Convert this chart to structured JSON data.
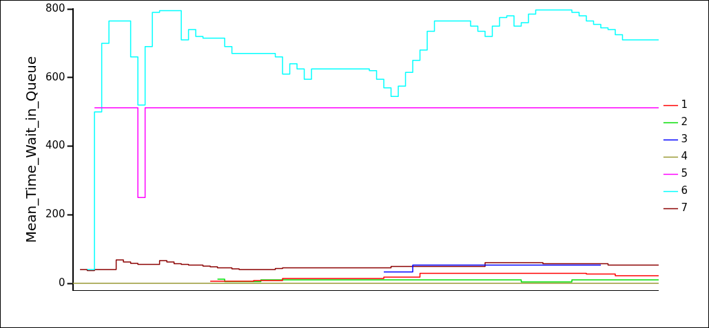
{
  "chart_data": {
    "type": "step",
    "ylabel": "Mean_Time_Wait_in_Queue",
    "categories": [
      null,
      null,
      null,
      null,
      null,
      null,
      null,
      null,
      null,
      null,
      null,
      null,
      null,
      null,
      null,
      null,
      null,
      null,
      null,
      null,
      null,
      null,
      null,
      null,
      null,
      null,
      null,
      null,
      null,
      null,
      null,
      null,
      null,
      null,
      null,
      null,
      null,
      null,
      null,
      null,
      null,
      null,
      null,
      null,
      null,
      null,
      null,
      null,
      null,
      null,
      null,
      null,
      null,
      null,
      null,
      null,
      null,
      null,
      null,
      null,
      null,
      null,
      null,
      null,
      null,
      null,
      null,
      null,
      null,
      null,
      null,
      null,
      null,
      null,
      null,
      null,
      null,
      null,
      null,
      null,
      null,
      null
    ],
    "ylim": [
      -20,
      800
    ],
    "yticks": [
      0,
      200,
      400,
      600,
      800
    ],
    "grid": false,
    "legend": "right",
    "series": [
      {
        "name": "1",
        "color": "#ff0000",
        "values": [
          null,
          null,
          null,
          null,
          null,
          null,
          null,
          null,
          null,
          null,
          null,
          null,
          null,
          null,
          null,
          null,
          null,
          null,
          null,
          6,
          6,
          6,
          6,
          6,
          6,
          8,
          8,
          8,
          8,
          14,
          14,
          14,
          14,
          14,
          14,
          14,
          14,
          14,
          14,
          14,
          14,
          14,
          14,
          18,
          18,
          18,
          18,
          18,
          29,
          29,
          29,
          29,
          29,
          29,
          29,
          29,
          29,
          29,
          29,
          29,
          29,
          29,
          29,
          29,
          29,
          29,
          29,
          29,
          29,
          29,
          29,
          27,
          27,
          27,
          27,
          22,
          22,
          22,
          22,
          22,
          22,
          22
        ]
      },
      {
        "name": "2",
        "color": "#00dd00",
        "values": [
          null,
          null,
          null,
          null,
          null,
          null,
          null,
          null,
          null,
          null,
          null,
          null,
          null,
          null,
          null,
          null,
          null,
          null,
          null,
          null,
          12,
          5,
          5,
          5,
          5,
          5,
          10,
          10,
          10,
          10,
          10,
          10,
          10,
          10,
          10,
          10,
          10,
          10,
          10,
          10,
          10,
          10,
          10,
          10,
          10,
          10,
          10,
          10,
          10,
          10,
          10,
          10,
          10,
          10,
          10,
          10,
          10,
          10,
          10,
          10,
          10,
          10,
          4,
          4,
          4,
          4,
          4,
          4,
          4,
          10,
          10,
          10,
          10,
          10,
          10,
          10,
          10,
          10,
          10,
          10,
          10,
          10
        ]
      },
      {
        "name": "3",
        "color": "#0000ff",
        "values": [
          null,
          null,
          null,
          null,
          null,
          null,
          null,
          null,
          null,
          null,
          null,
          null,
          null,
          null,
          null,
          null,
          null,
          null,
          null,
          null,
          null,
          null,
          null,
          null,
          null,
          null,
          null,
          null,
          null,
          null,
          null,
          null,
          null,
          null,
          null,
          null,
          null,
          null,
          null,
          null,
          null,
          null,
          null,
          33,
          33,
          33,
          33,
          53,
          53,
          53,
          53,
          53,
          53,
          53,
          53,
          53,
          53,
          53,
          53,
          53,
          53,
          53,
          53,
          53,
          53,
          53,
          53,
          53,
          53,
          53,
          53,
          53,
          53,
          53,
          null,
          null,
          null,
          null,
          null,
          null,
          null,
          null
        ]
      },
      {
        "name": "4",
        "color": "#999933",
        "values": [
          0,
          0,
          0,
          0,
          0,
          0,
          0,
          0,
          0,
          0,
          0,
          0,
          0,
          0,
          0,
          0,
          0,
          0,
          0,
          0,
          0,
          0,
          0,
          0,
          0,
          0,
          0,
          0,
          0,
          0,
          0,
          0,
          0,
          0,
          0,
          0,
          0,
          0,
          0,
          0,
          0,
          0,
          0,
          0,
          0,
          0,
          0,
          0,
          0,
          0,
          0,
          0,
          0,
          0,
          0,
          0,
          0,
          0,
          0,
          0,
          0,
          0,
          0,
          0,
          0,
          0,
          0,
          0,
          0,
          0,
          0,
          0,
          0,
          0,
          0,
          0,
          0,
          0,
          0,
          0,
          0,
          0
        ]
      },
      {
        "name": "5",
        "color": "#ff00ff",
        "values": [
          null,
          null,
          null,
          512,
          512,
          512,
          512,
          512,
          512,
          250,
          512,
          512,
          512,
          512,
          512,
          512,
          512,
          512,
          512,
          512,
          512,
          512,
          512,
          512,
          512,
          512,
          512,
          512,
          512,
          512,
          512,
          512,
          512,
          512,
          512,
          512,
          512,
          512,
          512,
          512,
          512,
          512,
          512,
          512,
          512,
          512,
          512,
          512,
          512,
          512,
          512,
          512,
          512,
          512,
          512,
          512,
          512,
          512,
          512,
          512,
          512,
          512,
          512,
          512,
          512,
          512,
          512,
          512,
          512,
          512,
          512,
          512,
          512,
          512,
          512,
          512,
          512,
          512,
          512,
          512,
          512,
          512
        ]
      },
      {
        "name": "6",
        "color": "#00ffff",
        "values": [
          null,
          null,
          40,
          500,
          700,
          765,
          765,
          765,
          660,
          520,
          690,
          790,
          795,
          795,
          795,
          710,
          740,
          720,
          715,
          715,
          715,
          690,
          670,
          670,
          670,
          670,
          670,
          670,
          660,
          610,
          640,
          625,
          595,
          625,
          625,
          625,
          625,
          625,
          625,
          625,
          625,
          620,
          595,
          570,
          545,
          575,
          615,
          650,
          680,
          735,
          765,
          765,
          765,
          765,
          765,
          750,
          735,
          720,
          750,
          775,
          780,
          750,
          760,
          785,
          797,
          797,
          797,
          797,
          797,
          790,
          780,
          765,
          755,
          745,
          740,
          725,
          710,
          710,
          710,
          710,
          710,
          710
        ]
      },
      {
        "name": "7",
        "color": "#8b0000",
        "values": [
          null,
          40,
          37,
          40,
          40,
          40,
          68,
          62,
          58,
          55,
          55,
          55,
          66,
          62,
          57,
          55,
          53,
          53,
          50,
          48,
          45,
          45,
          42,
          40,
          40,
          40,
          40,
          40,
          43,
          45,
          45,
          45,
          45,
          45,
          45,
          45,
          45,
          45,
          45,
          45,
          45,
          45,
          45,
          45,
          49,
          49,
          49,
          49,
          49,
          49,
          49,
          49,
          49,
          49,
          49,
          49,
          49,
          60,
          60,
          60,
          60,
          60,
          60,
          60,
          60,
          57,
          57,
          57,
          57,
          57,
          57,
          57,
          57,
          57,
          53,
          53,
          53,
          53,
          53,
          53,
          53,
          53
        ]
      }
    ]
  }
}
